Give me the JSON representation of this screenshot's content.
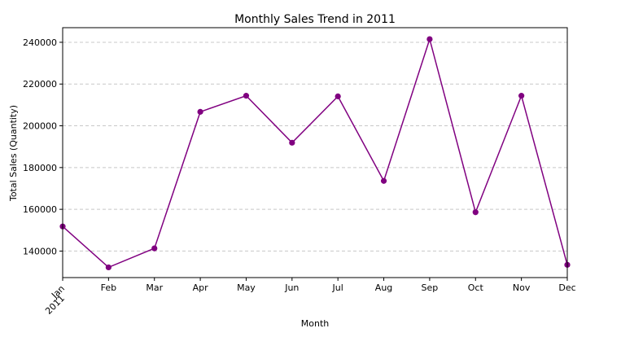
{
  "chart_data": {
    "type": "line",
    "title": "Monthly Sales Trend in 2011",
    "xlabel": "Month",
    "ylabel": "Total Sales (Quantity)",
    "x_first_tick_sublabel": "2011",
    "categories": [
      "Jan",
      "Feb",
      "Mar",
      "Apr",
      "May",
      "Jun",
      "Jul",
      "Aug",
      "Sep",
      "Oct",
      "Nov",
      "Dec"
    ],
    "values": [
      151800,
      132200,
      141300,
      206700,
      214400,
      191900,
      214100,
      173600,
      241500,
      158600,
      214400,
      133400
    ],
    "ylim": [
      127300,
      247000
    ],
    "yticks": [
      140000,
      160000,
      180000,
      200000,
      220000,
      240000
    ],
    "grid": "y-dashed",
    "line_color": "#800080",
    "marker_color": "#800080",
    "grid_color": "#c8c8c8"
  }
}
